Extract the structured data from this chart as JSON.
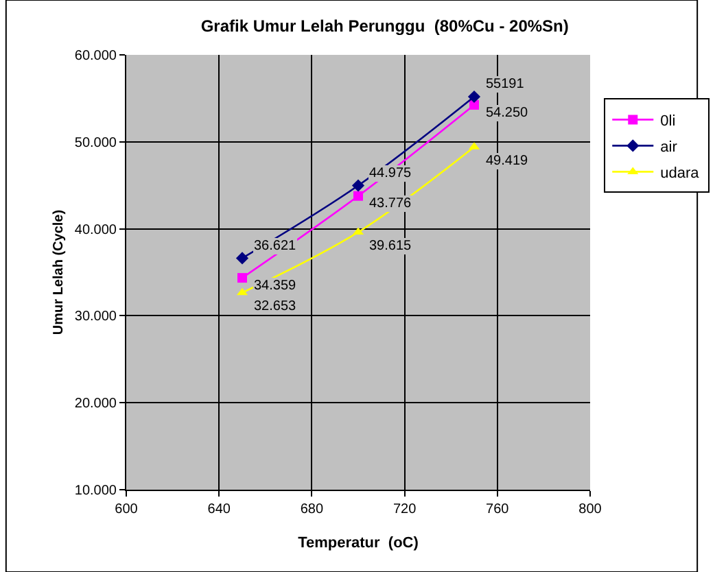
{
  "chart_data": {
    "type": "line",
    "title": "Grafik Umur Lelah Perunggu  (80%Cu - 20%Sn)",
    "xlabel": "Temperatur  (oC)",
    "ylabel": "Umur Lelah (Cycle)",
    "x": [
      650,
      700,
      750
    ],
    "series": [
      {
        "name": "0li",
        "color": "#ff00ff",
        "marker": "square",
        "values": [
          34359,
          43776,
          54250
        ],
        "value_labels": [
          "34.359",
          "43.776",
          "54.250"
        ]
      },
      {
        "name": "air",
        "color": "#000080",
        "marker": "diamond",
        "values": [
          36621,
          44975,
          55191
        ],
        "value_labels": [
          "36.621",
          "44.975",
          "55191"
        ]
      },
      {
        "name": "udara",
        "color": "#ffff00",
        "marker": "triangle",
        "values": [
          32653,
          39615,
          49419
        ],
        "value_labels": [
          "32.653",
          "39.615",
          "49.419"
        ]
      }
    ],
    "xlim": [
      600,
      800
    ],
    "xticks": [
      600,
      640,
      680,
      720,
      760,
      800
    ],
    "ylim": [
      10000,
      60000
    ],
    "yticks": [
      {
        "value": 10000,
        "label": "10.000"
      },
      {
        "value": 20000,
        "label": "20.000"
      },
      {
        "value": 30000,
        "label": "30.000"
      },
      {
        "value": 40000,
        "label": "40.000"
      },
      {
        "value": 50000,
        "label": "50.000"
      },
      {
        "value": 60000,
        "label": "60.000"
      }
    ],
    "grid": true,
    "legend": "right"
  }
}
